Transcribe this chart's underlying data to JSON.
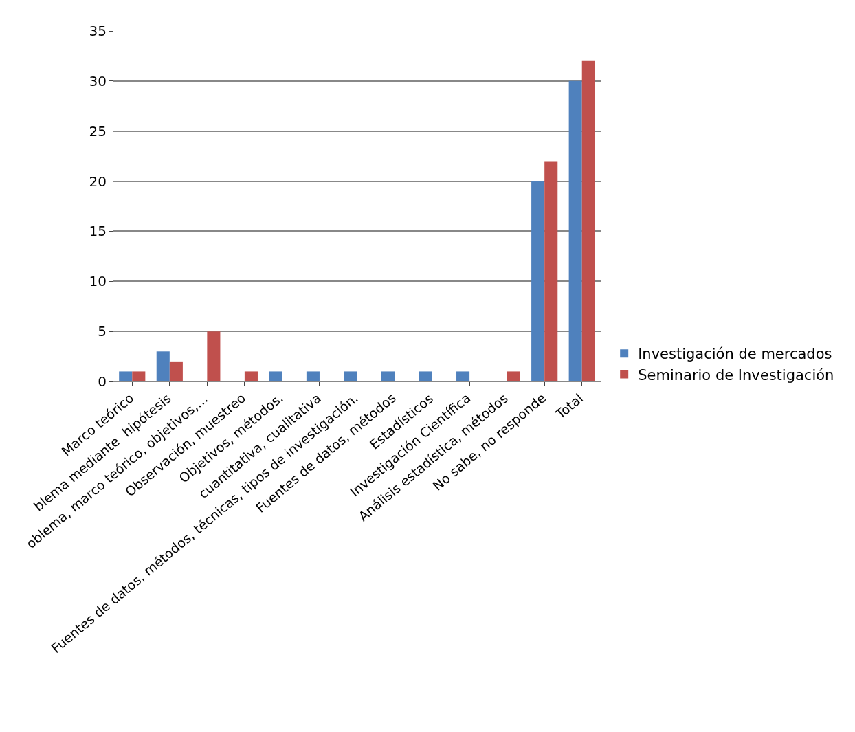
{
  "chart_data": {
    "type": "bar",
    "categories": [
      "Marco teórico",
      "blema mediante  hipótesis",
      "oblema, marco teórico, objetivos,…",
      "Observación, muestreo",
      "Objetivos, métodos.",
      "cuantitativa, cualitativa",
      "Fuentes de datos, métodos, técnicas, tipos de investigación.",
      "Fuentes de datos, métodos",
      "Estadísticos",
      "Investigación Científica",
      "Análisis estadística, métodos",
      "No sabe, no responde",
      "Total"
    ],
    "series": [
      {
        "name": "Investigación de mercados",
        "color": "#4f81bd",
        "values": [
          1,
          3,
          0,
          0,
          1,
          1,
          1,
          1,
          1,
          1,
          0,
          20,
          30
        ]
      },
      {
        "name": "Seminario de Investigación",
        "color": "#c0504d",
        "values": [
          1,
          2,
          5,
          1,
          0,
          0,
          0,
          0,
          0,
          0,
          1,
          22,
          32
        ]
      }
    ],
    "ylim": [
      0,
      35
    ],
    "yticks": [
      0,
      5,
      10,
      15,
      20,
      25,
      30,
      35
    ],
    "grid": "y",
    "legend": "right"
  }
}
